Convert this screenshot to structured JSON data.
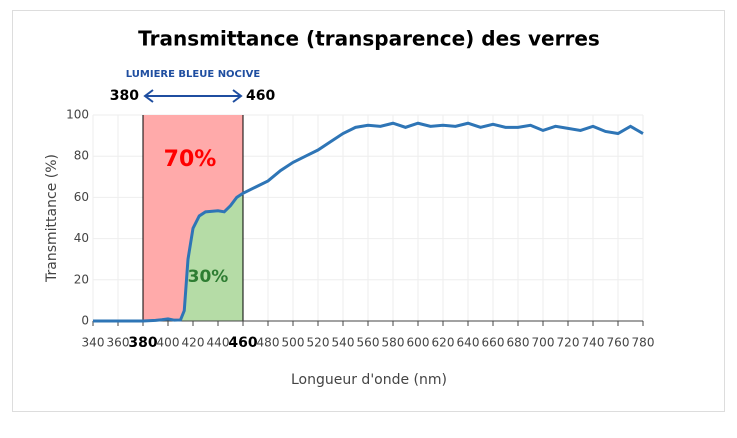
{
  "chart_data": {
    "type": "line",
    "title": "Transmittance (transparence) des verres",
    "x_label": "Longueur d'onde (nm)",
    "y_label": "Transmittance (%)",
    "x": [
      340,
      350,
      360,
      370,
      380,
      390,
      395,
      400,
      405,
      410,
      413,
      416,
      420,
      425,
      430,
      440,
      445,
      450,
      455,
      460,
      470,
      480,
      490,
      500,
      510,
      520,
      530,
      540,
      550,
      560,
      570,
      580,
      590,
      600,
      610,
      620,
      630,
      640,
      650,
      660,
      670,
      680,
      690,
      700,
      710,
      720,
      730,
      740,
      750,
      760,
      770,
      780
    ],
    "series": [
      {
        "name": "Transmittance",
        "color": "#2e75b6",
        "values": [
          0,
          0,
          0,
          0,
          0,
          0.3,
          0.6,
          1,
          0.4,
          0.5,
          5,
          30,
          45,
          51,
          53,
          53.5,
          53,
          56,
          60,
          62,
          65,
          68,
          73,
          77,
          80,
          83,
          87,
          91,
          94,
          95,
          94.5,
          96,
          94,
          96,
          94.5,
          95,
          94.5,
          96,
          94,
          95.5,
          94,
          94,
          95,
          92.5,
          94.5,
          93.5,
          92.5,
          94.5,
          92,
          91,
          94.5,
          91
        ]
      }
    ],
    "xlim": [
      340,
      780
    ],
    "ylim": [
      0,
      100
    ],
    "xticks": [
      340,
      360,
      380,
      400,
      420,
      440,
      460,
      480,
      500,
      520,
      540,
      560,
      580,
      600,
      620,
      640,
      660,
      680,
      700,
      720,
      740,
      760,
      780
    ],
    "yticks": [
      0,
      20,
      40,
      60,
      80,
      100
    ],
    "grid": true,
    "region": {
      "label": "LUMIERE BLEUE NOCIVE",
      "start": 380,
      "end": 460,
      "color": "#ffaaaa",
      "under_color": "#b5dca6",
      "arrow_color": "#1f4ea0",
      "above_label": "70%",
      "above_color": "#ff0000",
      "under_label": "30%",
      "under_text_color": "#2e7d32"
    }
  }
}
